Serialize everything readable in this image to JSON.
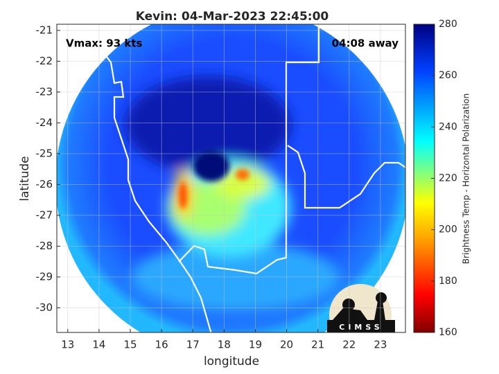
{
  "chart_data": {
    "type": "image",
    "title": "Kevin: 04-Mar-2023 22:45:00",
    "annotations": [
      "Vmax: 93 kts",
      "04:08 away"
    ],
    "xlabel": "longitude",
    "ylabel": "latitude",
    "xlim": [
      12.65,
      23.8
    ],
    "ylim": [
      -30.8,
      -20.8
    ],
    "xticks": [
      13,
      14,
      15,
      16,
      17,
      18,
      19,
      20,
      21,
      22,
      23
    ],
    "yticks": [
      -21,
      -22,
      -23,
      -24,
      -25,
      -26,
      -27,
      -28,
      -29,
      -30
    ],
    "grid": true,
    "colorbar": {
      "label": "Brightness Temp - Horizontal Polarization",
      "lim": [
        160,
        280
      ],
      "ticks": [
        160,
        180,
        200,
        220,
        240,
        260,
        280
      ]
    },
    "logo_text": "CIMSS"
  }
}
